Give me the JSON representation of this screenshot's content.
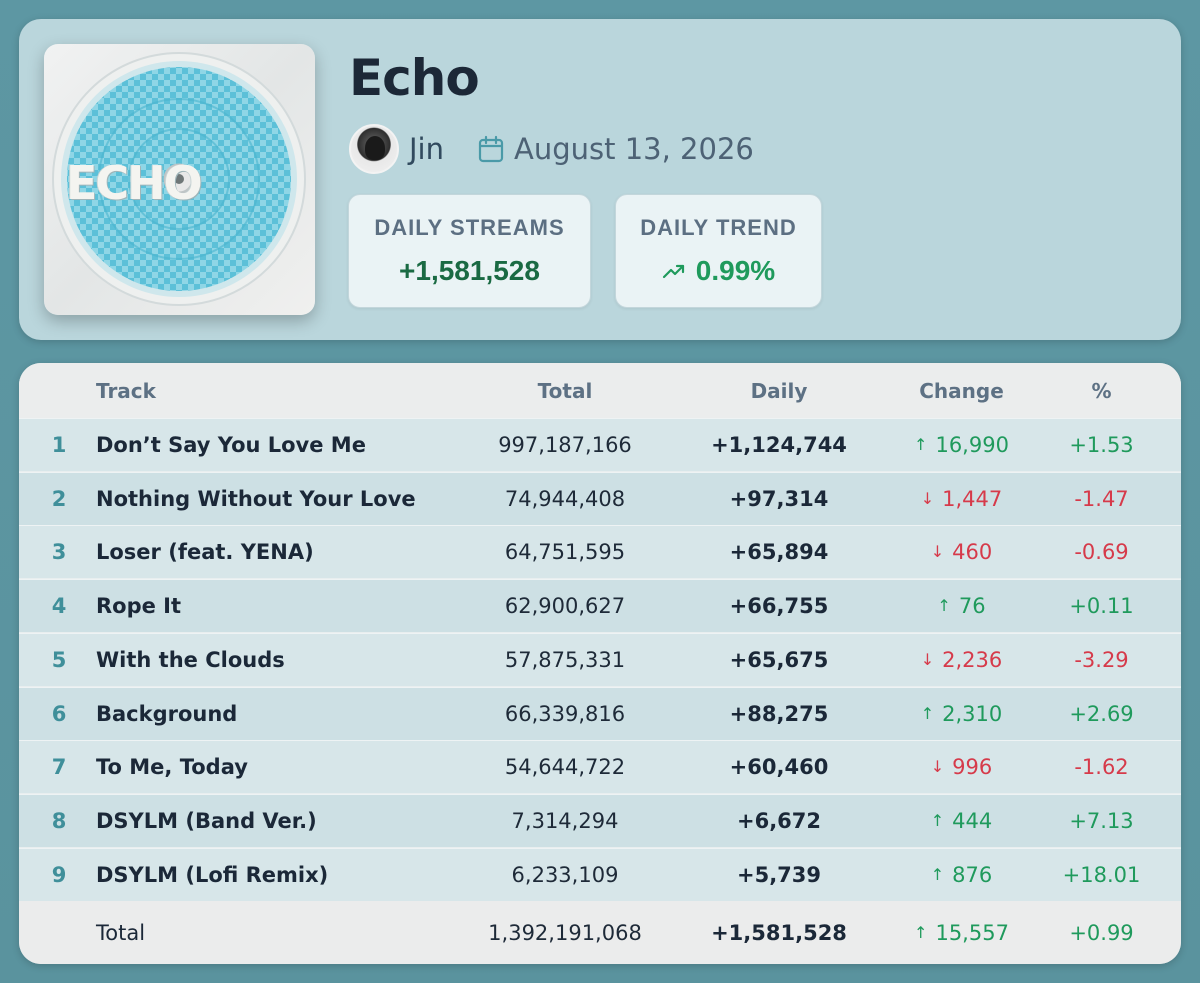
{
  "album": {
    "title": "Echo",
    "cover_text": "ECHO",
    "artist": "Jin",
    "release_date": "August 13, 2026"
  },
  "stats": {
    "streams_label": "DAILY STREAMS",
    "streams_value": "+1,581,528",
    "trend_label": "DAILY TREND",
    "trend_value": "0.99%"
  },
  "table": {
    "headers": {
      "track": "Track",
      "total": "Total",
      "daily": "Daily",
      "change": "Change",
      "pct": "%"
    },
    "rows": [
      {
        "num": "1",
        "track": "Don’t Say You Love Me",
        "total": "997,187,166",
        "daily": "+1,124,744",
        "dir": "up",
        "arrow": "↑",
        "change": "16,990",
        "pct": "+1.53"
      },
      {
        "num": "2",
        "track": "Nothing Without Your Love",
        "total": "74,944,408",
        "daily": "+97,314",
        "dir": "down",
        "arrow": "↓",
        "change": "1,447",
        "pct": "-1.47"
      },
      {
        "num": "3",
        "track": "Loser (feat. YENA)",
        "total": "64,751,595",
        "daily": "+65,894",
        "dir": "down",
        "arrow": "↓",
        "change": "460",
        "pct": "-0.69"
      },
      {
        "num": "4",
        "track": "Rope It",
        "total": "62,900,627",
        "daily": "+66,755",
        "dir": "up",
        "arrow": "↑",
        "change": "76",
        "pct": "+0.11"
      },
      {
        "num": "5",
        "track": "With the Clouds",
        "total": "57,875,331",
        "daily": "+65,675",
        "dir": "down",
        "arrow": "↓",
        "change": "2,236",
        "pct": "-3.29"
      },
      {
        "num": "6",
        "track": "Background",
        "total": "66,339,816",
        "daily": "+88,275",
        "dir": "up",
        "arrow": "↑",
        "change": "2,310",
        "pct": "+2.69"
      },
      {
        "num": "7",
        "track": "To Me, Today",
        "total": "54,644,722",
        "daily": "+60,460",
        "dir": "down",
        "arrow": "↓",
        "change": "996",
        "pct": "-1.62"
      },
      {
        "num": "8",
        "track": "DSYLM (Band Ver.)",
        "total": "7,314,294",
        "daily": "+6,672",
        "dir": "up",
        "arrow": "↑",
        "change": "444",
        "pct": "+7.13"
      },
      {
        "num": "9",
        "track": "DSYLM (Lofi Remix)",
        "total": "6,233,109",
        "daily": "+5,739",
        "dir": "up",
        "arrow": "↑",
        "change": "876",
        "pct": "+18.01"
      }
    ],
    "footer": {
      "label": "Total",
      "total": "1,392,191,068",
      "daily": "+1,581,528",
      "dir": "up",
      "arrow": "↑",
      "change": "15,557",
      "pct": "+0.99"
    }
  },
  "colors": {
    "up": "#1f9a5c",
    "down": "#d63a4a",
    "accent": "#3f8f9a"
  },
  "icons": {
    "date": "calendar-icon",
    "trend": "trending-up-icon",
    "up": "arrow-up-icon",
    "down": "arrow-down-icon"
  }
}
